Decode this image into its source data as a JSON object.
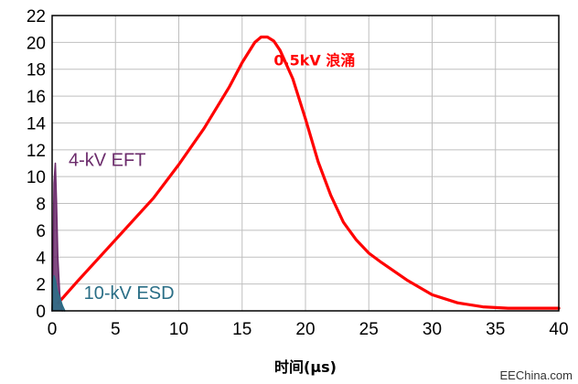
{
  "chart_data": {
    "type": "line",
    "title": "",
    "xlabel": "时间(μs)",
    "ylabel": "",
    "xlim": [
      0,
      40
    ],
    "ylim": [
      0,
      22
    ],
    "xticks": [
      0,
      5,
      10,
      15,
      20,
      25,
      30,
      35,
      40
    ],
    "yticks": [
      0,
      2,
      4,
      6,
      8,
      10,
      12,
      14,
      16,
      18,
      20,
      22
    ],
    "grid": true,
    "legend": "none",
    "series": [
      {
        "name": "0.5kV 浪涌",
        "color": "#ff0000",
        "x": [
          0.5,
          2,
          5,
          8,
          10,
          12,
          14,
          15,
          16,
          16.5,
          17,
          17.5,
          18,
          19,
          20,
          21,
          22,
          23,
          24,
          25,
          26,
          28,
          30,
          32,
          34,
          36,
          38,
          40
        ],
        "y": [
          0.6,
          2.2,
          5.3,
          8.4,
          10.9,
          13.6,
          16.7,
          18.5,
          20.0,
          20.4,
          20.4,
          20.1,
          19.4,
          17.3,
          14.3,
          11.1,
          8.6,
          6.6,
          5.3,
          4.3,
          3.6,
          2.3,
          1.2,
          0.6,
          0.3,
          0.2,
          0.2,
          0.2
        ]
      },
      {
        "name": "4-kV EFT",
        "color": "#6b2b6b",
        "x": [
          0,
          0.05,
          0.15,
          0.25,
          0.35,
          0.45,
          0.6,
          0.8
        ],
        "y": [
          0,
          2.0,
          9.5,
          11.0,
          8.0,
          4.0,
          1.2,
          0
        ]
      },
      {
        "name": "10-kV ESD",
        "color": "#2a6e86",
        "x": [
          0,
          0.05,
          0.15,
          0.25,
          0.4,
          0.6,
          0.8,
          1.0
        ],
        "y": [
          0,
          1.5,
          2.6,
          2.3,
          1.5,
          1.0,
          0.4,
          0
        ]
      }
    ],
    "annotations": [
      {
        "text": "0.5kV  浪涌",
        "color": "#ff0000",
        "x": 17.5,
        "y": 18.3
      },
      {
        "text": "4-kV EFT",
        "color": "#6b2b6b",
        "x": 1.3,
        "y": 10.8
      },
      {
        "text": "10-kV ESD",
        "color": "#2a6e86",
        "x": 2.5,
        "y": 0.9
      }
    ]
  },
  "watermark": "EEChina.com"
}
